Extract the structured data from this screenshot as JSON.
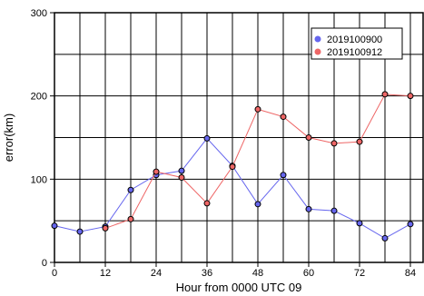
{
  "chart_data": {
    "type": "line",
    "title": "",
    "xlabel": "Hour from 0000 UTC 09",
    "ylabel": "error(km)",
    "xlim": [
      0,
      87
    ],
    "ylim": [
      0,
      300
    ],
    "xticks": [
      0,
      12,
      24,
      36,
      48,
      60,
      72,
      84
    ],
    "yticks": [
      0,
      100,
      200,
      300
    ],
    "x_grid_step": 6,
    "y_grid_step": 50,
    "grid": true,
    "legend_position": "top-right",
    "series": [
      {
        "name": "2019100900",
        "color": "#6666ee",
        "x": [
          0,
          6,
          12,
          18,
          24,
          30,
          36,
          42,
          48,
          54,
          60,
          66,
          72,
          78,
          84
        ],
        "y": [
          44,
          37,
          43,
          87,
          105,
          110,
          149,
          116,
          70,
          105,
          64,
          62,
          47,
          29,
          46
        ]
      },
      {
        "name": "2019100912",
        "color": "#ee6666",
        "x": [
          12,
          18,
          24,
          30,
          36,
          42,
          48,
          54,
          60,
          66,
          72,
          78,
          84
        ],
        "y": [
          41,
          52,
          109,
          102,
          71,
          115,
          184,
          175,
          150,
          143,
          145,
          202,
          200
        ]
      }
    ]
  }
}
